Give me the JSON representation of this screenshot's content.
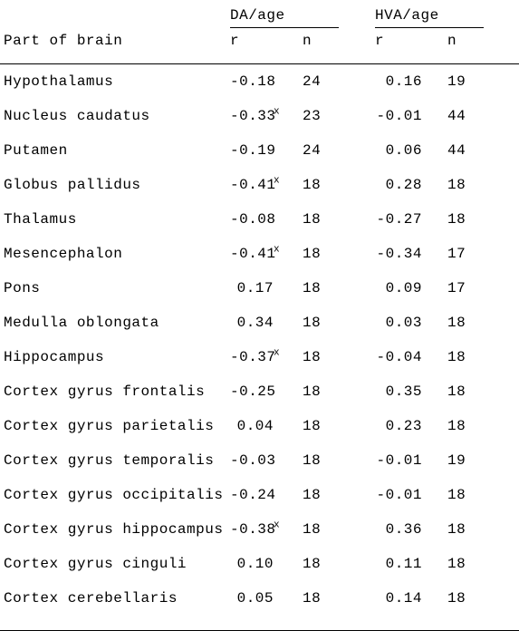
{
  "header": {
    "group1": "DA/age",
    "group2": "HVA/age",
    "label": "Part of brain",
    "r": "r",
    "n": "n"
  },
  "rows": [
    {
      "label": "Hypothalamus",
      "r1": "-0.18",
      "s1": "",
      "n1": "24",
      "r2": "0.16",
      "n2": "19"
    },
    {
      "label": "Nucleus caudatus",
      "r1": "-0.33",
      "s1": "x",
      "n1": "23",
      "r2": "-0.01",
      "n2": "44"
    },
    {
      "label": "Putamen",
      "r1": "-0.19",
      "s1": "",
      "n1": "24",
      "r2": "0.06",
      "n2": "44"
    },
    {
      "label": "Globus pallidus",
      "r1": "-0.41",
      "s1": "x",
      "n1": "18",
      "r2": "0.28",
      "n2": "18"
    },
    {
      "label": "Thalamus",
      "r1": "-0.08",
      "s1": "",
      "n1": "18",
      "r2": "-0.27",
      "n2": "18"
    },
    {
      "label": "Mesencephalon",
      "r1": "-0.41",
      "s1": "x",
      "n1": "18",
      "r2": "-0.34",
      "n2": "17"
    },
    {
      "label": "Pons",
      "r1": "0.17",
      "s1": "",
      "n1": "18",
      "r2": "0.09",
      "n2": "17"
    },
    {
      "label": "Medulla oblongata",
      "r1": "0.34",
      "s1": "",
      "n1": "18",
      "r2": "0.03",
      "n2": "18"
    },
    {
      "label": "Hippocampus",
      "r1": "-0.37",
      "s1": "x",
      "n1": "18",
      "r2": "-0.04",
      "n2": "18"
    },
    {
      "label": "Cortex gyrus frontalis",
      "r1": "-0.25",
      "s1": "",
      "n1": "18",
      "r2": "0.35",
      "n2": "18"
    },
    {
      "label": "Cortex gyrus parietalis",
      "r1": "0.04",
      "s1": "",
      "n1": "18",
      "r2": "0.23",
      "n2": "18"
    },
    {
      "label": "Cortex gyrus temporalis",
      "r1": "-0.03",
      "s1": "",
      "n1": "18",
      "r2": "-0.01",
      "n2": "19"
    },
    {
      "label": "Cortex gyrus occipitalis",
      "r1": "-0.24",
      "s1": "",
      "n1": "18",
      "r2": "-0.01",
      "n2": "18"
    },
    {
      "label": "Cortex gyrus hippocampus",
      "r1": "-0.38",
      "s1": "x",
      "n1": "18",
      "r2": "0.36",
      "n2": "18"
    },
    {
      "label": "Cortex gyrus cinguli",
      "r1": "0.10",
      "s1": "",
      "n1": "18",
      "r2": "0.11",
      "n2": "18"
    },
    {
      "label": "Cortex cerebellaris",
      "r1": "0.05",
      "s1": "",
      "n1": "18",
      "r2": "0.14",
      "n2": "18"
    }
  ]
}
